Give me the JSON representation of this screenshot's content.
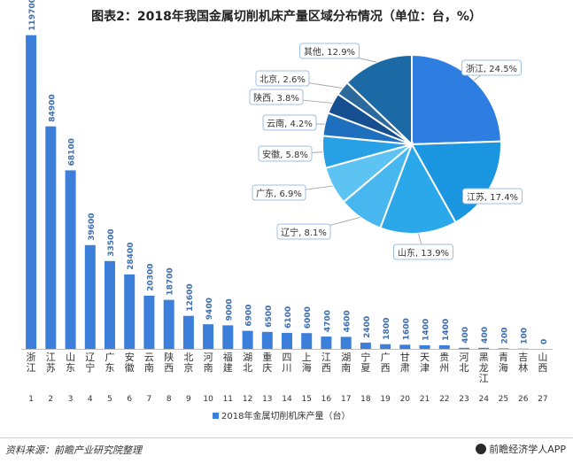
{
  "title": "图表2：2018年我国金属切削机床产量区域分布情况（单位：台，%）",
  "source": "资料来源：前瞻产业研究院整理",
  "brand": "前瞻经济学人APP",
  "colors": {
    "bar": "#3b7fdb",
    "pie": [
      "#2e7de0",
      "#1a96e0",
      "#2aa8ea",
      "#49b7ef",
      "#5cc3f2",
      "#27a0e6",
      "#1f6fbf",
      "#164f8f",
      "#2c6a9c",
      "#1b6aa5"
    ]
  },
  "chart_data": [
    {
      "type": "bar",
      "categories": [
        "浙江",
        "江苏",
        "山东",
        "辽宁",
        "广东",
        "安徽",
        "云南",
        "陕西",
        "北京",
        "河南",
        "福建",
        "湖北",
        "重庆",
        "四川",
        "上海",
        "江西",
        "湖南",
        "宁夏",
        "广西",
        "甘肃",
        "天津",
        "贵州",
        "河北",
        "黑龙江",
        "青海",
        "吉林",
        "山西"
      ],
      "indices": [
        "1",
        "2",
        "3",
        "4",
        "5",
        "6",
        "7",
        "8",
        "9",
        "10",
        "11",
        "12",
        "13",
        "14",
        "15",
        "16",
        "17",
        "18",
        "19",
        "20",
        "21",
        "22",
        "23",
        "24",
        "25",
        "26",
        "27"
      ],
      "series": [
        {
          "name": "2018年金属切削机床产量（台）",
          "values": [
            119700,
            84900,
            68100,
            39600,
            33500,
            28400,
            20300,
            18700,
            12600,
            9400,
            9000,
            6900,
            6500,
            6100,
            6000,
            4700,
            4600,
            2400,
            1800,
            1600,
            1400,
            1400,
            400,
            400,
            200,
            100,
            0
          ]
        }
      ],
      "ylim": [
        0,
        125000
      ],
      "legend": "bottom"
    },
    {
      "type": "pie",
      "slices": [
        {
          "label": "浙江, 24.5%",
          "value": 24.5
        },
        {
          "label": "江苏, 17.4%",
          "value": 17.4
        },
        {
          "label": "山东, 13.9%",
          "value": 13.9
        },
        {
          "label": "辽宁, 8.1%",
          "value": 8.1
        },
        {
          "label": "广东, 6.9%",
          "value": 6.9
        },
        {
          "label": "安徽, 5.8%",
          "value": 5.8
        },
        {
          "label": "云南, 4.2%",
          "value": 4.2
        },
        {
          "label": "陕西, 3.8%",
          "value": 3.8
        },
        {
          "label": "北京, 2.6%",
          "value": 2.6
        },
        {
          "label": "其他, 12.9%",
          "value": 12.9
        }
      ]
    }
  ]
}
